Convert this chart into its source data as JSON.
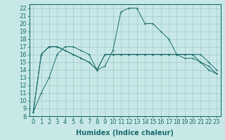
{
  "xlabel": "Humidex (Indice chaleur)",
  "background_color": "#c8e8e8",
  "grid_color": "#a0c8c8",
  "line_color": "#1a6b6b",
  "xlim": [
    -0.5,
    23.5
  ],
  "ylim": [
    8,
    22.5
  ],
  "xticks": [
    0,
    1,
    2,
    3,
    4,
    5,
    6,
    7,
    8,
    9,
    10,
    11,
    12,
    13,
    14,
    15,
    16,
    17,
    18,
    19,
    20,
    21,
    22,
    23
  ],
  "yticks": [
    8,
    9,
    10,
    11,
    12,
    13,
    14,
    15,
    16,
    17,
    18,
    19,
    20,
    21,
    22
  ],
  "series": [
    [
      8.5,
      11,
      13,
      16,
      17,
      17,
      16.5,
      16,
      14,
      14.5,
      16.5,
      21.5,
      22,
      22,
      20,
      20,
      19,
      18,
      16,
      16,
      16,
      15,
      14,
      13.5
    ],
    [
      8.5,
      16,
      17,
      17,
      16.5,
      16,
      15.5,
      15,
      14,
      16,
      16,
      16,
      16,
      16,
      16,
      16,
      16,
      16,
      16,
      16,
      16,
      16,
      15,
      14
    ],
    [
      8.5,
      16,
      17,
      17,
      16.5,
      16,
      15.5,
      15,
      14,
      16,
      16,
      16,
      16,
      16,
      16,
      16,
      16,
      16,
      16,
      15.5,
      15.5,
      15,
      14.5,
      13.5
    ]
  ],
  "font_size": 6,
  "xlabel_fontsize": 7
}
